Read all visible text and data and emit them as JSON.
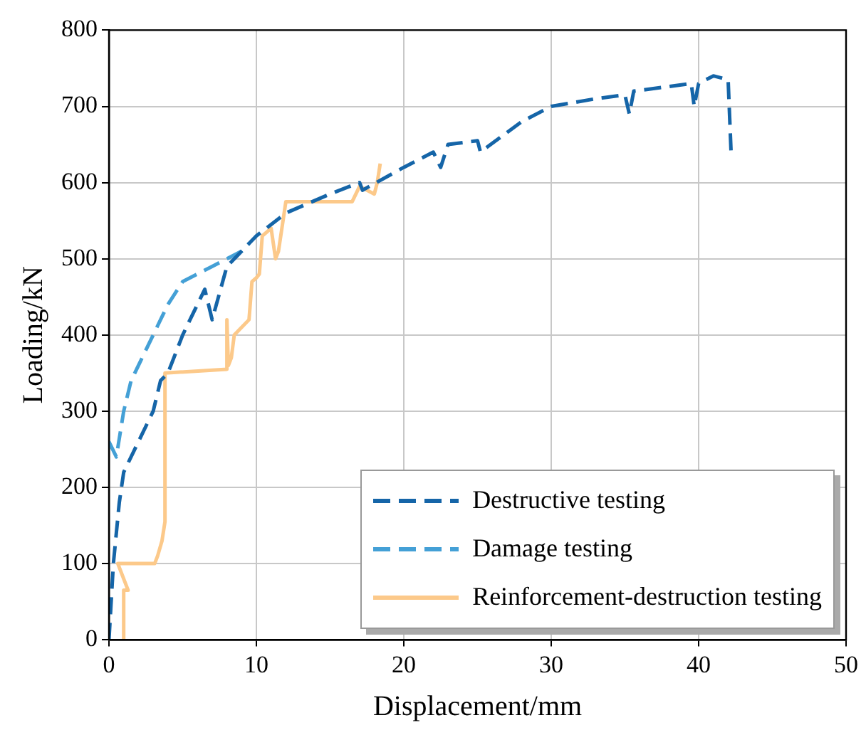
{
  "chart_data": {
    "type": "line",
    "xlabel": "Displacement/mm",
    "ylabel": "Loading/kN",
    "xlim": [
      0,
      50
    ],
    "xticks": [
      0,
      10,
      20,
      30,
      40,
      50
    ],
    "ylim": [
      0,
      800
    ],
    "yticks": [
      0,
      100,
      200,
      300,
      400,
      500,
      600,
      700,
      800
    ],
    "grid": true,
    "legend": "bottom right",
    "marker": "none",
    "series": [
      {
        "name": "Destructive testing",
        "color": "#1565a8",
        "line_style": "dashed",
        "x": [
          0,
          0.3,
          0.7,
          1,
          2,
          3,
          3.5,
          4,
          5,
          6,
          6.5,
          7,
          8,
          10,
          12,
          15,
          17,
          17.2,
          20,
          22,
          22.5,
          23,
          25,
          25.2,
          28,
          30,
          33,
          35,
          35.3,
          35.6,
          39.5,
          39.7,
          40,
          41,
          42,
          42.2
        ],
        "values": [
          0,
          100,
          180,
          220,
          260,
          300,
          340,
          350,
          400,
          440,
          460,
          420,
          490,
          530,
          560,
          585,
          600,
          590,
          620,
          640,
          620,
          650,
          655,
          640,
          680,
          700,
          710,
          715,
          690,
          720,
          730,
          700,
          730,
          740,
          735,
          640
        ]
      },
      {
        "name": "Damage testing",
        "color": "#44a0d6",
        "line_style": "dashed",
        "x": [
          0,
          0.5,
          1,
          1.5,
          2,
          3,
          4,
          5,
          6,
          7,
          8,
          9,
          9.5
        ],
        "values": [
          260,
          240,
          300,
          340,
          360,
          400,
          440,
          470,
          480,
          490,
          500,
          510,
          520
        ]
      },
      {
        "name": "Reinforcement-destruction testing",
        "color": "#fcc98a",
        "line_style": "solid",
        "x": [
          1,
          1,
          1.3,
          0.6,
          3.1,
          3.3,
          3.6,
          3.8,
          3.8,
          8,
          8,
          8.1,
          8.3,
          8.5,
          9.5,
          9.7,
          10,
          10.2,
          10.4,
          11,
          11.3,
          11.5,
          12,
          16.5,
          17,
          18,
          18.2,
          18.4
        ],
        "values": [
          0,
          65,
          65,
          100,
          100,
          110,
          130,
          155,
          350,
          355,
          420,
          360,
          370,
          400,
          420,
          470,
          475,
          480,
          530,
          540,
          500,
          510,
          575,
          575,
          595,
          585,
          600,
          625
        ]
      }
    ]
  }
}
